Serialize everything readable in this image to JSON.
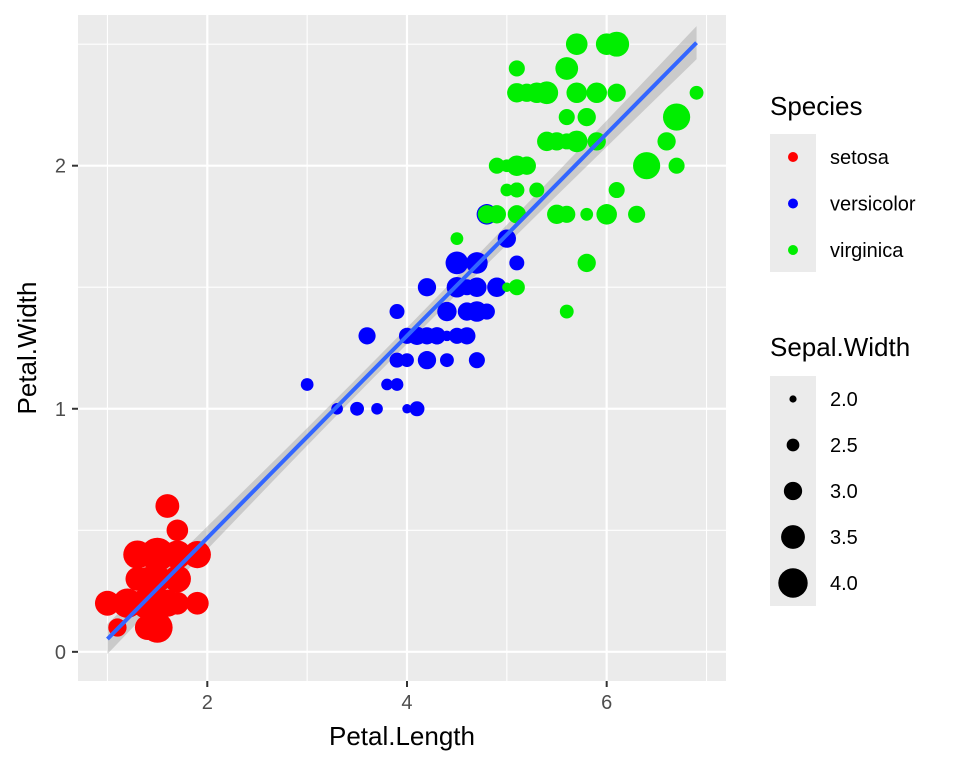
{
  "chart_data": {
    "type": "scatter",
    "title": "",
    "xlabel": "Petal.Length",
    "ylabel": "Petal.Width",
    "xlim": [
      0.705,
      7.195
    ],
    "ylim": [
      -0.12,
      2.62
    ],
    "x_ticks": [
      2,
      4,
      6
    ],
    "y_ticks": [
      0,
      1,
      2
    ],
    "grid": true,
    "legend_position": "right",
    "size_variable": "Sepal.Width",
    "series": [
      {
        "name": "setosa",
        "color": "#ff0000",
        "points": [
          [
            1.4,
            0.2,
            3.5
          ],
          [
            1.4,
            0.2,
            3.0
          ],
          [
            1.3,
            0.2,
            3.2
          ],
          [
            1.5,
            0.2,
            3.1
          ],
          [
            1.4,
            0.2,
            3.6
          ],
          [
            1.7,
            0.4,
            3.9
          ],
          [
            1.4,
            0.3,
            3.4
          ],
          [
            1.5,
            0.2,
            3.4
          ],
          [
            1.4,
            0.2,
            2.9
          ],
          [
            1.5,
            0.1,
            3.1
          ],
          [
            1.5,
            0.2,
            3.7
          ],
          [
            1.6,
            0.2,
            3.4
          ],
          [
            1.4,
            0.1,
            3.0
          ],
          [
            1.1,
            0.1,
            3.0
          ],
          [
            1.2,
            0.2,
            4.0
          ],
          [
            1.5,
            0.4,
            4.4
          ],
          [
            1.3,
            0.4,
            3.9
          ],
          [
            1.4,
            0.3,
            3.5
          ],
          [
            1.7,
            0.3,
            3.8
          ],
          [
            1.5,
            0.3,
            3.8
          ],
          [
            1.7,
            0.2,
            3.4
          ],
          [
            1.5,
            0.4,
            3.7
          ],
          [
            1.0,
            0.2,
            3.6
          ],
          [
            1.7,
            0.5,
            3.3
          ],
          [
            1.9,
            0.2,
            3.4
          ],
          [
            1.6,
            0.2,
            3.0
          ],
          [
            1.6,
            0.4,
            3.4
          ],
          [
            1.5,
            0.2,
            3.5
          ],
          [
            1.4,
            0.2,
            3.4
          ],
          [
            1.6,
            0.2,
            3.2
          ],
          [
            1.6,
            0.2,
            3.1
          ],
          [
            1.5,
            0.4,
            3.4
          ],
          [
            1.5,
            0.1,
            4.1
          ],
          [
            1.4,
            0.2,
            4.2
          ],
          [
            1.5,
            0.2,
            3.1
          ],
          [
            1.2,
            0.2,
            3.2
          ],
          [
            1.3,
            0.2,
            3.5
          ],
          [
            1.4,
            0.1,
            3.6
          ],
          [
            1.3,
            0.2,
            3.0
          ],
          [
            1.5,
            0.2,
            3.4
          ],
          [
            1.3,
            0.3,
            3.5
          ],
          [
            1.3,
            0.3,
            2.3
          ],
          [
            1.3,
            0.2,
            3.2
          ],
          [
            1.6,
            0.6,
            3.5
          ],
          [
            1.9,
            0.4,
            3.8
          ],
          [
            1.4,
            0.3,
            3.0
          ],
          [
            1.6,
            0.2,
            3.8
          ],
          [
            1.4,
            0.2,
            3.2
          ],
          [
            1.5,
            0.2,
            3.7
          ],
          [
            1.4,
            0.2,
            3.3
          ]
        ]
      },
      {
        "name": "versicolor",
        "color": "#0000ff",
        "points": [
          [
            4.7,
            1.4,
            3.2
          ],
          [
            4.5,
            1.5,
            3.2
          ],
          [
            4.9,
            1.5,
            3.1
          ],
          [
            4.0,
            1.3,
            2.3
          ],
          [
            4.6,
            1.5,
            2.8
          ],
          [
            4.5,
            1.3,
            2.8
          ],
          [
            4.7,
            1.6,
            3.3
          ],
          [
            3.3,
            1.0,
            2.4
          ],
          [
            4.6,
            1.3,
            2.9
          ],
          [
            3.9,
            1.4,
            2.7
          ],
          [
            3.5,
            1.0,
            2.0
          ],
          [
            4.2,
            1.5,
            3.0
          ],
          [
            4.0,
            1.0,
            2.2
          ],
          [
            4.7,
            1.4,
            2.9
          ],
          [
            3.6,
            1.3,
            2.9
          ],
          [
            4.4,
            1.4,
            3.1
          ],
          [
            4.5,
            1.5,
            3.0
          ],
          [
            4.1,
            1.0,
            2.7
          ],
          [
            4.5,
            1.5,
            2.2
          ],
          [
            3.9,
            1.1,
            2.5
          ],
          [
            4.8,
            1.8,
            3.2
          ],
          [
            4.0,
            1.3,
            2.8
          ],
          [
            4.9,
            1.5,
            2.5
          ],
          [
            4.7,
            1.2,
            2.8
          ],
          [
            4.3,
            1.3,
            2.9
          ],
          [
            4.4,
            1.4,
            3.0
          ],
          [
            4.8,
            1.4,
            2.8
          ],
          [
            5.0,
            1.7,
            3.0
          ],
          [
            4.5,
            1.5,
            2.9
          ],
          [
            3.5,
            1.0,
            2.6
          ],
          [
            3.8,
            1.1,
            2.4
          ],
          [
            3.7,
            1.0,
            2.4
          ],
          [
            3.9,
            1.2,
            2.7
          ],
          [
            5.1,
            1.6,
            2.7
          ],
          [
            4.5,
            1.5,
            3.0
          ],
          [
            4.5,
            1.6,
            3.4
          ],
          [
            4.7,
            1.5,
            3.1
          ],
          [
            4.4,
            1.3,
            2.3
          ],
          [
            4.1,
            1.3,
            3.0
          ],
          [
            4.0,
            1.3,
            2.5
          ],
          [
            4.4,
            1.2,
            2.6
          ],
          [
            4.6,
            1.4,
            3.0
          ],
          [
            4.0,
            1.2,
            2.6
          ],
          [
            3.3,
            1.0,
            2.3
          ],
          [
            4.2,
            1.3,
            2.7
          ],
          [
            4.2,
            1.2,
            3.0
          ],
          [
            4.2,
            1.3,
            2.9
          ],
          [
            4.3,
            1.3,
            2.9
          ],
          [
            3.0,
            1.1,
            2.5
          ],
          [
            4.1,
            1.3,
            2.8
          ]
        ]
      },
      {
        "name": "virginica",
        "color": "#00ee00",
        "points": [
          [
            6.0,
            2.5,
            3.3
          ],
          [
            5.1,
            1.9,
            2.7
          ],
          [
            5.9,
            2.1,
            3.0
          ],
          [
            5.6,
            1.8,
            2.9
          ],
          [
            5.8,
            2.2,
            3.0
          ],
          [
            6.6,
            2.1,
            3.0
          ],
          [
            4.5,
            1.7,
            2.5
          ],
          [
            6.3,
            1.8,
            2.9
          ],
          [
            5.8,
            1.8,
            2.5
          ],
          [
            6.1,
            2.5,
            3.6
          ],
          [
            5.1,
            2.0,
            3.2
          ],
          [
            5.3,
            1.9,
            2.7
          ],
          [
            5.5,
            2.1,
            3.0
          ],
          [
            5.0,
            2.0,
            2.5
          ],
          [
            5.1,
            2.4,
            2.8
          ],
          [
            5.3,
            2.3,
            3.2
          ],
          [
            5.5,
            1.8,
            3.0
          ],
          [
            6.7,
            2.2,
            3.8
          ],
          [
            6.9,
            2.3,
            2.6
          ],
          [
            5.0,
            1.5,
            2.2
          ],
          [
            5.7,
            2.3,
            3.2
          ],
          [
            4.9,
            2.0,
            2.8
          ],
          [
            6.7,
            2.0,
            2.8
          ],
          [
            4.9,
            1.8,
            2.7
          ],
          [
            5.7,
            2.1,
            3.3
          ],
          [
            6.0,
            1.8,
            3.2
          ],
          [
            4.8,
            1.8,
            2.8
          ],
          [
            4.9,
            1.8,
            3.0
          ],
          [
            5.6,
            2.1,
            2.8
          ],
          [
            5.8,
            1.6,
            3.0
          ],
          [
            6.1,
            1.9,
            2.8
          ],
          [
            6.4,
            2.0,
            3.8
          ],
          [
            5.6,
            2.2,
            2.8
          ],
          [
            5.1,
            1.5,
            2.8
          ],
          [
            5.6,
            1.4,
            2.6
          ],
          [
            6.1,
            2.3,
            3.0
          ],
          [
            5.6,
            2.4,
            3.4
          ],
          [
            5.5,
            1.8,
            3.1
          ],
          [
            4.8,
            1.8,
            3.0
          ],
          [
            5.4,
            2.1,
            3.1
          ],
          [
            5.6,
            2.4,
            3.1
          ],
          [
            5.1,
            2.3,
            3.1
          ],
          [
            5.1,
            1.9,
            2.7
          ],
          [
            5.9,
            2.3,
            3.2
          ],
          [
            5.7,
            2.5,
            3.3
          ],
          [
            5.2,
            2.3,
            3.0
          ],
          [
            5.0,
            1.9,
            2.5
          ],
          [
            5.2,
            2.0,
            3.0
          ],
          [
            5.4,
            2.3,
            3.4
          ],
          [
            5.1,
            1.8,
            3.0
          ]
        ]
      }
    ],
    "smooth_line": {
      "method": "lm",
      "color": "#3366ff",
      "x_range": [
        1.0,
        6.9
      ],
      "intercept": -0.363,
      "slope": 0.4158
    },
    "legends": {
      "species": {
        "title": "Species",
        "items": [
          {
            "label": "setosa",
            "color": "#ff0000"
          },
          {
            "label": "versicolor",
            "color": "#0000ff"
          },
          {
            "label": "virginica",
            "color": "#00ee00"
          }
        ]
      },
      "size": {
        "title": "Sepal.Width",
        "items": [
          {
            "label": "2.0",
            "value": 2.0
          },
          {
            "label": "2.5",
            "value": 2.5
          },
          {
            "label": "3.0",
            "value": 3.0
          },
          {
            "label": "3.5",
            "value": 3.5
          },
          {
            "label": "4.0",
            "value": 4.0
          }
        ]
      }
    }
  }
}
